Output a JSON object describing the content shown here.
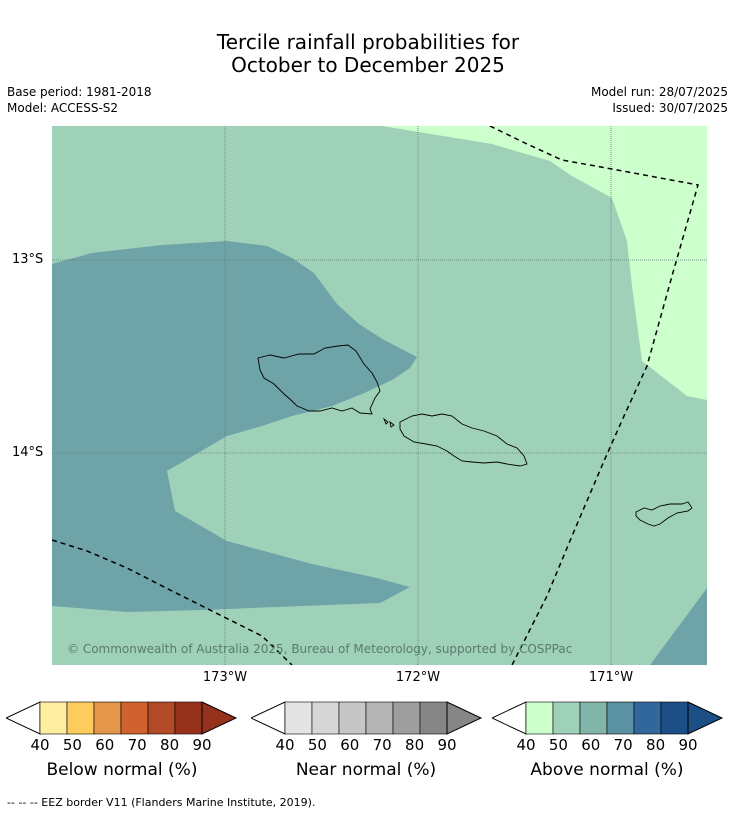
{
  "title_line1": "Tercile rainfall probabilities for",
  "title_line2": "October to December 2025",
  "base_period": "Base period: 1981-2018",
  "model": "Model: ACCESS-S2",
  "model_run": "Model run: 28/07/2025",
  "issued": "Issued: 30/07/2025",
  "lat_labels": [
    "13°S",
    "14°S"
  ],
  "lon_labels": [
    "173°W",
    "172°W",
    "171°W"
  ],
  "copyright": "© Commonwealth of Australia 2025, Bureau of Meteorology, supported by COSPPac",
  "colorbars": [
    {
      "title": "Below normal (%)",
      "ticks": [
        "40",
        "50",
        "60",
        "70",
        "80",
        "90"
      ],
      "colors": [
        "#ffeda0",
        "#fecc5c",
        "#e4974a",
        "#d0622f",
        "#b24a28",
        "#96321c"
      ]
    },
    {
      "title": "Near normal (%)",
      "ticks": [
        "40",
        "50",
        "60",
        "70",
        "80",
        "90"
      ],
      "colors": [
        "#e4e4e4",
        "#d6d6d6",
        "#c6c6c6",
        "#b4b4b4",
        "#9e9e9e",
        "#868686"
      ]
    },
    {
      "title": "Above normal (%)",
      "ticks": [
        "40",
        "50",
        "60",
        "70",
        "80",
        "90"
      ],
      "colors": [
        "#ccffcc",
        "#9fd1b9",
        "#82b5a9",
        "#5a92a3",
        "#31679a",
        "#1b4f86"
      ]
    }
  ],
  "footnote": "-- -- -- EEZ border V11 (Flanders Marine Institute, 2019).",
  "map_colors": {
    "above_50_60": "#9fd1b9",
    "above_40_50": "#ccffcc",
    "above_60_70": "#6ea3a8",
    "gridline": "#5c7f70",
    "coast": "#000000"
  }
}
